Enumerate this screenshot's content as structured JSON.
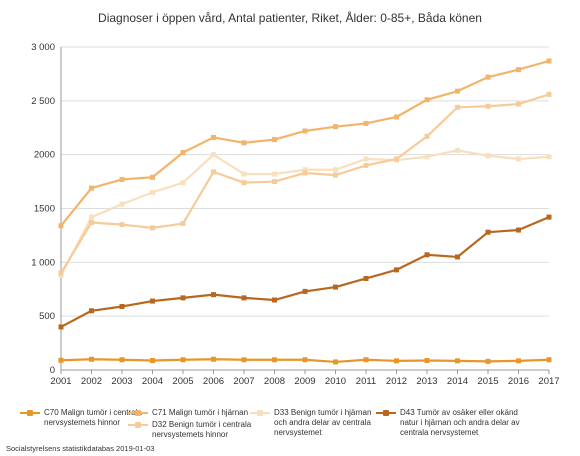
{
  "chart_data": {
    "type": "line",
    "title": "Diagnoser i öppen vård, Antal patienter, Riket, Ålder: 0-85+, Båda könen",
    "xlabel": "",
    "ylabel": "",
    "x": [
      "2001",
      "2002",
      "2003",
      "2004",
      "2005",
      "2006",
      "2007",
      "2008",
      "2009",
      "2010",
      "2011",
      "2012",
      "2013",
      "2014",
      "2015",
      "2016",
      "2017"
    ],
    "ylim": [
      0,
      3000
    ],
    "yticks": [
      0,
      500,
      1000,
      1500,
      2000,
      2500,
      3000
    ],
    "ytick_labels": [
      "0",
      "500",
      "1 000",
      "1500",
      "2000",
      "2 500",
      "3 000"
    ],
    "grid": true,
    "legend_position": "bottom",
    "series": [
      {
        "name": "C70 Malign tumör i centrala nervsystemets hinnor",
        "color": "#e8962a",
        "values": [
          90,
          100,
          95,
          88,
          95,
          100,
          95,
          95,
          95,
          75,
          95,
          85,
          88,
          85,
          80,
          85,
          95
        ]
      },
      {
        "name": "C71 Malign tumör i hjärnan",
        "color": "#f2b46a",
        "values": [
          1340,
          1690,
          1770,
          1790,
          2020,
          2160,
          2110,
          2140,
          2220,
          2260,
          2290,
          2350,
          2510,
          2590,
          2720,
          2790,
          2870
        ]
      },
      {
        "name": "D32 Benign tumör i centrala nervsystemets hinnor",
        "color": "#f5cc99",
        "values": [
          900,
          1370,
          1350,
          1320,
          1360,
          1840,
          1740,
          1750,
          1830,
          1810,
          1900,
          1960,
          2170,
          2440,
          2450,
          2470,
          2560
        ]
      },
      {
        "name": "D33 Benign tumör i hjärnan och andra delar av centrala nervsystemet",
        "color": "#f8dfbd",
        "values": [
          880,
          1420,
          1540,
          1650,
          1740,
          2000,
          1820,
          1820,
          1860,
          1860,
          1960,
          1950,
          1980,
          2040,
          1990,
          1960,
          1980
        ]
      },
      {
        "name": "D43 Tumör av osäker eller okänd natur i hjärnan och andra delar av centrala nervsystemet",
        "color": "#b8681e",
        "values": [
          400,
          550,
          590,
          640,
          670,
          700,
          670,
          650,
          730,
          770,
          850,
          930,
          1070,
          1050,
          1280,
          1300,
          1420
        ]
      }
    ]
  },
  "source": "Socialstyrelsens statistikdatabas 2019-01-03"
}
